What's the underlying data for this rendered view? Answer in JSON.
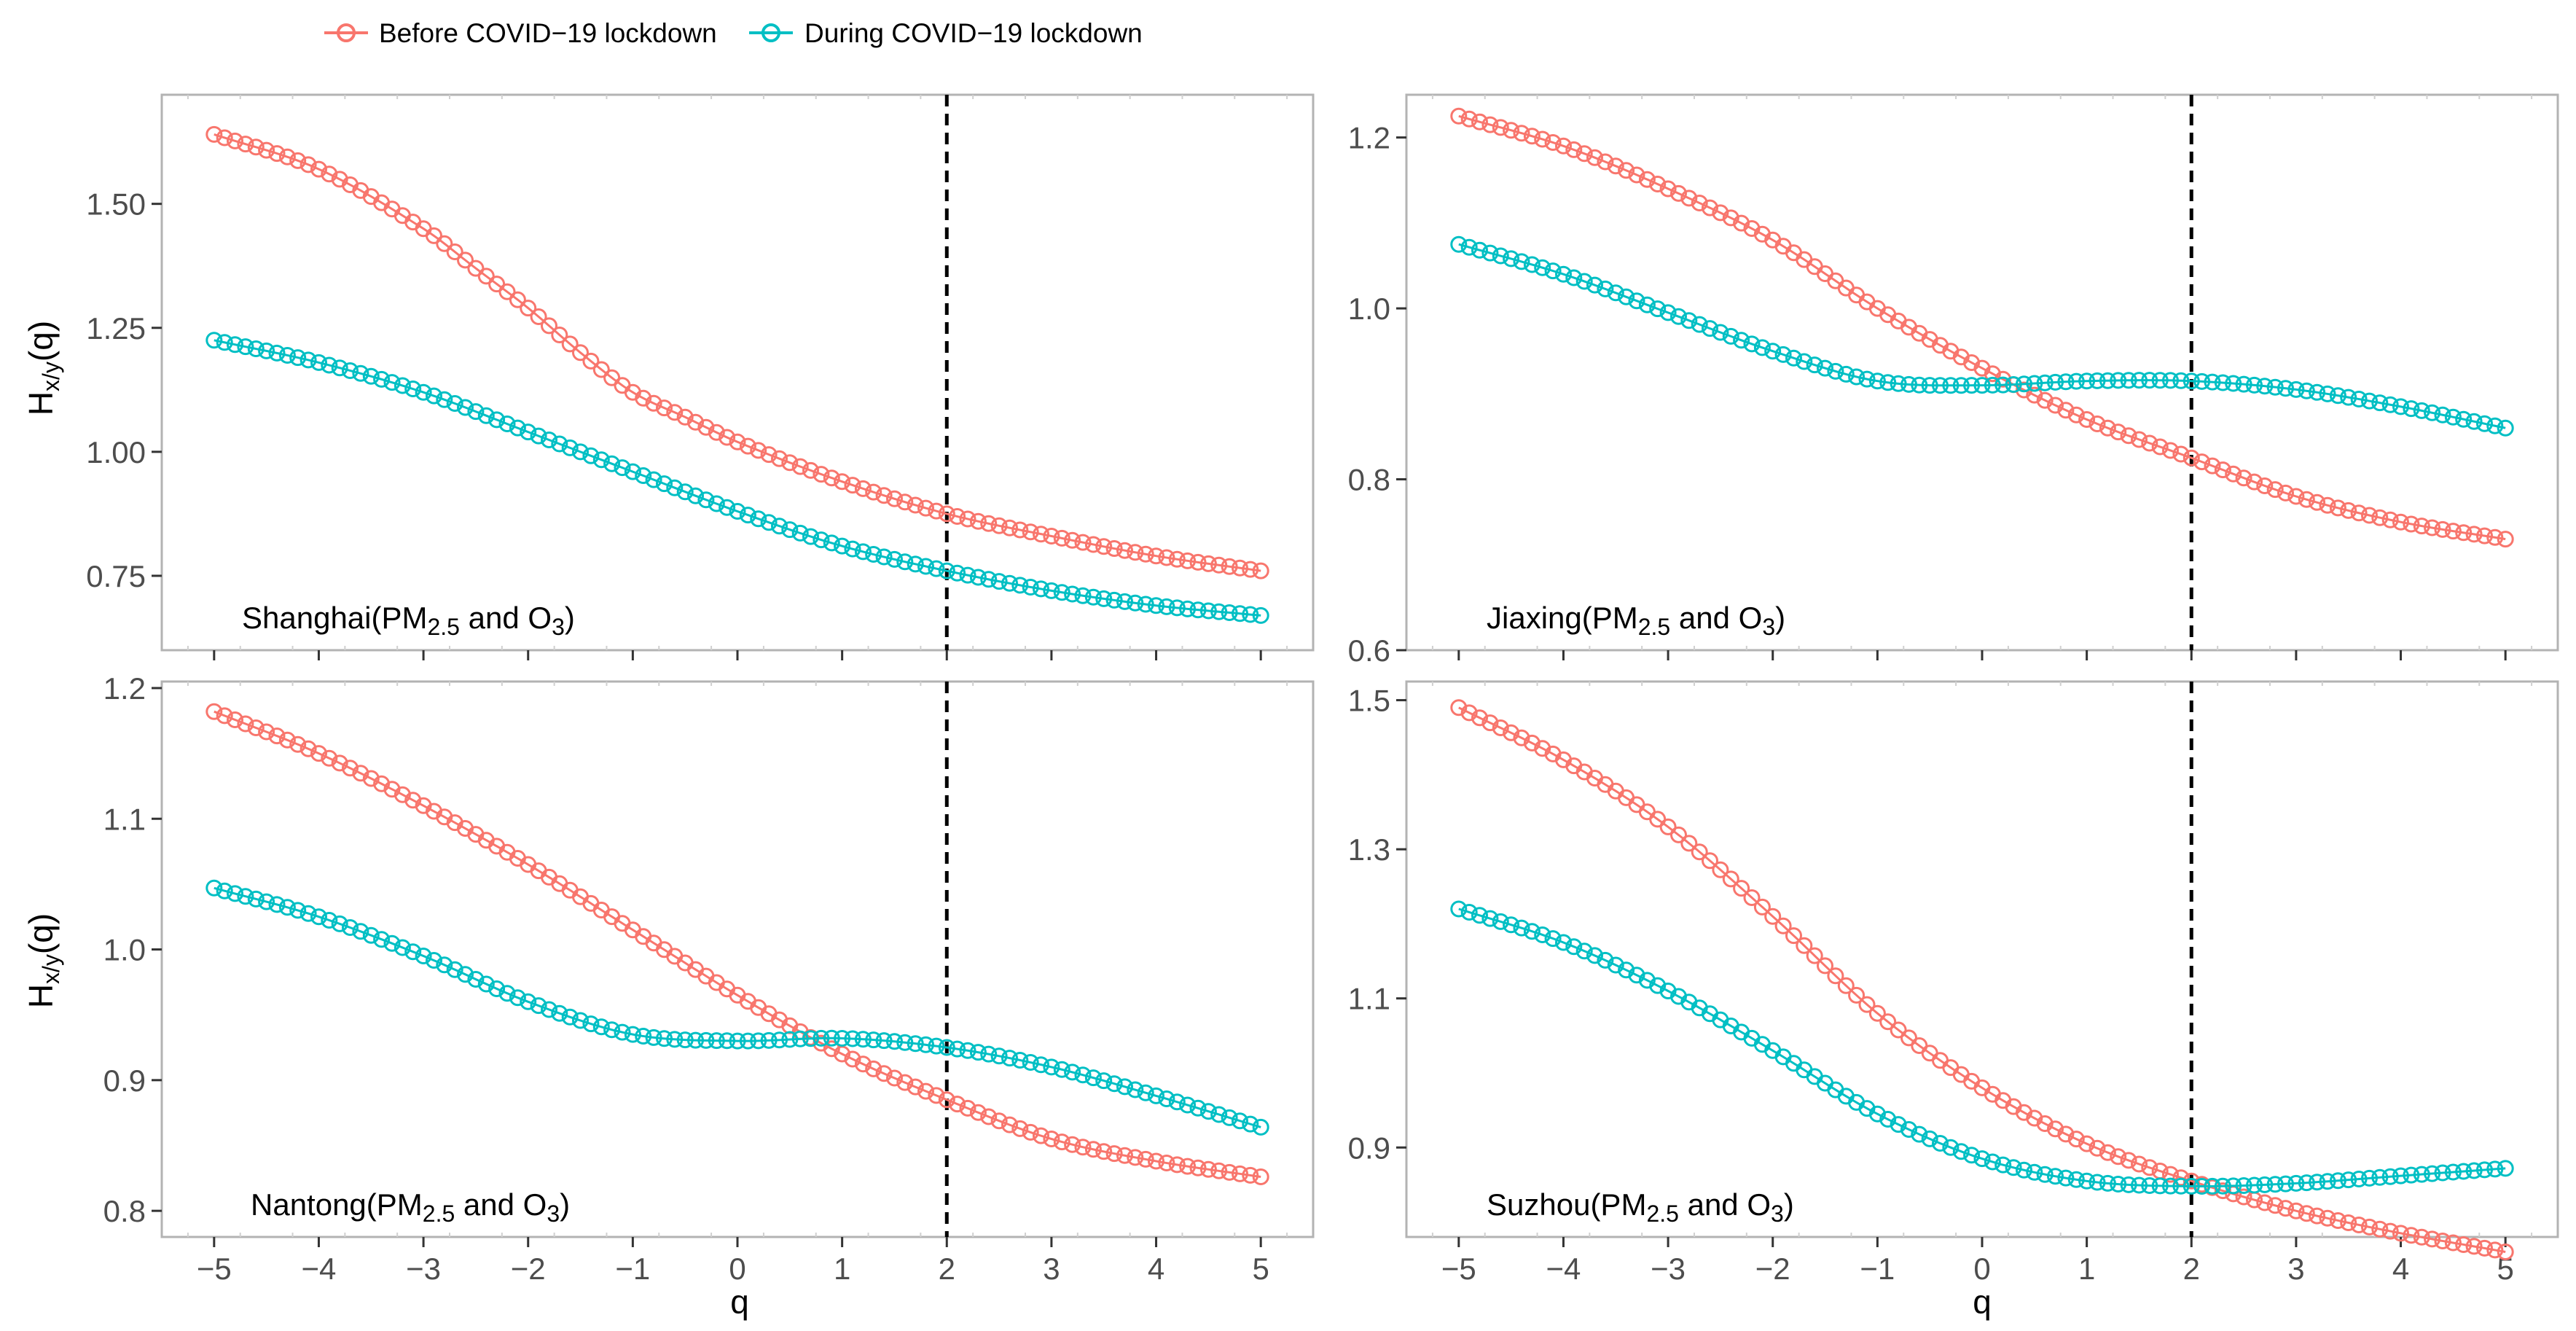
{
  "chart_data": {
    "type": "line",
    "legend": {
      "position": "top",
      "entries": [
        {
          "name": "Before COVID−19 lockdown",
          "color": "#F8766D"
        },
        {
          "name": "During COVID−19 lockdown",
          "color": "#00BFC4"
        }
      ]
    },
    "xlabel": "q",
    "ylabel_main": "H",
    "ylabel_sub": "x/y",
    "ylabel_tail": "(q)",
    "reference_line_x": 2,
    "grid": false,
    "marker": "open-circle",
    "panels": [
      {
        "city": "Shanghai",
        "label": {
          "prefix": "Shanghai(PM",
          "sub1": "2.5",
          "mid": " and O",
          "sub2": "3",
          "suffix": ")"
        },
        "xlim": [
          -5.5,
          5.5
        ],
        "ylim": [
          0.6,
          1.72
        ],
        "xticks": [
          -5,
          -4,
          -3,
          -2,
          -1,
          0,
          1,
          2,
          3,
          4,
          5
        ],
        "yticks": [
          0.75,
          1.0,
          1.25,
          1.5
        ],
        "ytick_labels": [
          "0.75",
          "1.00",
          "1.25",
          "1.50"
        ],
        "series": [
          {
            "name": "Before COVID−19 lockdown",
            "x": [
              -5,
              -4,
              -3,
              -2.5,
              -2,
              -1.5,
              -1,
              -0.5,
              0,
              1,
              2,
              3,
              4,
              5
            ],
            "y": [
              1.64,
              1.57,
              1.45,
              1.37,
              1.29,
              1.2,
              1.12,
              1.07,
              1.02,
              0.94,
              0.875,
              0.83,
              0.79,
              0.76
            ]
          },
          {
            "name": "During COVID−19 lockdown",
            "x": [
              -5,
              -4,
              -3,
              -2,
              -1,
              0,
              1,
              2,
              3,
              4,
              5
            ],
            "y": [
              1.225,
              1.18,
              1.12,
              1.04,
              0.96,
              0.88,
              0.81,
              0.76,
              0.72,
              0.69,
              0.67
            ]
          }
        ]
      },
      {
        "city": "Jiaxing",
        "label": {
          "prefix": "Jiaxing(PM",
          "sub1": "2.5",
          "mid": " and O",
          "sub2": "3",
          "suffix": ")"
        },
        "xlim": [
          -5.5,
          5.5
        ],
        "ylim": [
          0.6,
          1.25
        ],
        "xticks": [
          -5,
          -4,
          -3,
          -2,
          -1,
          0,
          1,
          2,
          3,
          4,
          5
        ],
        "yticks": [
          0.6,
          0.8,
          1.0,
          1.2
        ],
        "ytick_labels": [
          "0.6",
          "0.8",
          "1.0",
          "1.2"
        ],
        "series": [
          {
            "name": "Before COVID−19 lockdown",
            "x": [
              -5,
              -4,
              -3,
              -2,
              -1,
              0,
              1,
              2,
              3,
              4,
              5
            ],
            "y": [
              1.225,
              1.19,
              1.14,
              1.08,
              1.0,
              0.93,
              0.87,
              0.825,
              0.78,
              0.75,
              0.73
            ]
          },
          {
            "name": "During COVID−19 lockdown",
            "x": [
              -5,
              -4,
              -3,
              -2,
              -1,
              0,
              1,
              2,
              3,
              4,
              5
            ],
            "y": [
              1.075,
              1.04,
              0.995,
              0.95,
              0.915,
              0.91,
              0.915,
              0.915,
              0.905,
              0.885,
              0.86
            ]
          }
        ]
      },
      {
        "city": "Nantong",
        "label": {
          "prefix": "Nantong(PM",
          "sub1": "2.5",
          "mid": " and O",
          "sub2": "3",
          "suffix": ")"
        },
        "xlim": [
          -5.5,
          5.5
        ],
        "ylim": [
          0.78,
          1.205
        ],
        "xticks": [
          -5,
          -4,
          -3,
          -2,
          -1,
          0,
          1,
          2,
          3,
          4,
          5
        ],
        "yticks": [
          0.8,
          0.9,
          1.0,
          1.1,
          1.2
        ],
        "ytick_labels": [
          "0.8",
          "0.9",
          "1.0",
          "1.1",
          "1.2"
        ],
        "series": [
          {
            "name": "Before COVID−19 lockdown",
            "x": [
              -5,
              -4,
              -3,
              -2,
              -1,
              0,
              1,
              2,
              3,
              4,
              5
            ],
            "y": [
              1.182,
              1.15,
              1.11,
              1.065,
              1.015,
              0.965,
              0.92,
              0.885,
              0.855,
              0.838,
              0.826
            ]
          },
          {
            "name": "During COVID−19 lockdown",
            "x": [
              -5,
              -4,
              -3,
              -2,
              -1,
              0,
              1,
              2,
              3,
              4,
              5
            ],
            "y": [
              1.047,
              1.025,
              0.995,
              0.96,
              0.935,
              0.93,
              0.932,
              0.925,
              0.91,
              0.888,
              0.864
            ]
          }
        ]
      },
      {
        "city": "Suzhou",
        "label": {
          "prefix": "Suzhou(PM",
          "sub1": "2.5",
          "mid": " and O",
          "sub2": "3",
          "suffix": ")"
        },
        "xlim": [
          -5.5,
          5.5
        ],
        "ylim": [
          0.78,
          1.525
        ],
        "xticks": [
          -5,
          -4,
          -3,
          -2,
          -1,
          0,
          1,
          2,
          3,
          4,
          5
        ],
        "yticks": [
          0.9,
          1.1,
          1.3,
          1.5
        ],
        "ytick_labels": [
          "0.9",
          "1.1",
          "1.3",
          "1.5"
        ],
        "series": [
          {
            "name": "Before COVID−19 lockdown",
            "x": [
              -5,
              -4,
              -3,
              -2,
              -1,
              0,
              1,
              2,
              3,
              4,
              5
            ],
            "y": [
              1.49,
              1.42,
              1.33,
              1.21,
              1.08,
              0.98,
              0.905,
              0.855,
              0.815,
              0.785,
              0.76
            ]
          },
          {
            "name": "During COVID−19 lockdown",
            "x": [
              -5,
              -4,
              -3,
              -2,
              -1,
              0,
              1,
              2,
              3,
              4,
              5
            ],
            "y": [
              1.22,
              1.175,
              1.11,
              1.03,
              0.945,
              0.885,
              0.855,
              0.848,
              0.852,
              0.862,
              0.872
            ]
          }
        ]
      }
    ]
  }
}
